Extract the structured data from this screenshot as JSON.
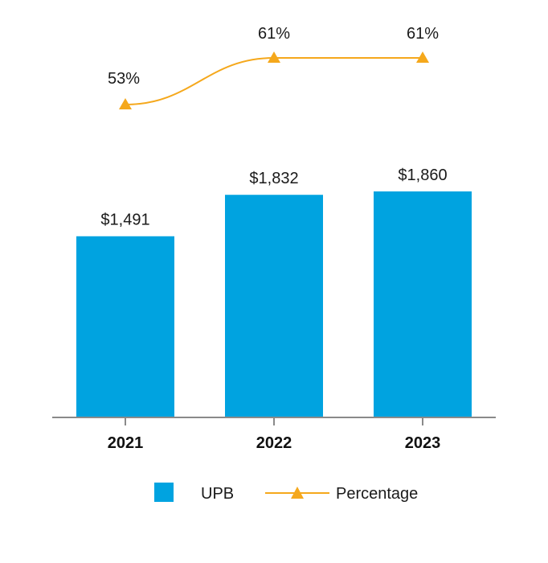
{
  "chart_data": {
    "type": "bar",
    "categories": [
      "2021",
      "2022",
      "2023"
    ],
    "series": [
      {
        "name": "UPB",
        "kind": "bar",
        "values": [
          1491,
          1832,
          1860
        ],
        "labels": [
          "$1,491",
          "$1,832",
          "$1,860"
        ],
        "color": "#00a3e0"
      },
      {
        "name": "Percentage",
        "kind": "line",
        "marker": "triangle",
        "values": [
          53,
          61,
          61
        ],
        "labels": [
          "53%",
          "61%",
          "61%"
        ],
        "color": "#f5a81c"
      }
    ],
    "legend": {
      "position": "bottom",
      "items": [
        "UPB",
        "Percentage"
      ]
    },
    "grid": false
  }
}
